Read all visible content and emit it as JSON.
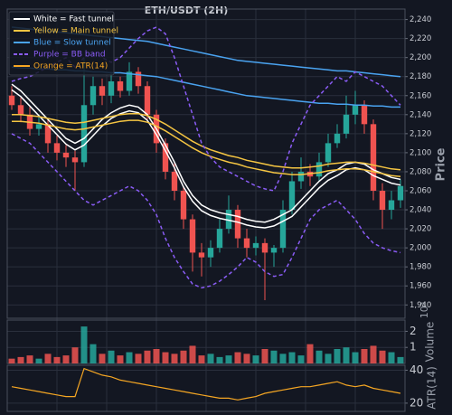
{
  "chart_data": [
    {
      "type": "candlestick",
      "title": "ETH/USDT (2H)",
      "y_label": "Price",
      "categories": [
        null,
        null,
        null,
        null,
        null,
        null,
        null,
        null,
        null,
        null,
        null,
        null,
        null,
        null,
        null,
        null,
        null,
        null,
        null,
        null,
        null,
        null,
        null,
        null,
        null,
        null,
        null,
        null,
        null,
        null,
        null,
        null,
        null,
        null,
        null,
        null,
        null,
        null,
        null,
        null,
        null,
        null,
        null,
        null
      ],
      "up_color": "#26a69a",
      "down_color": "#ef5350",
      "open": [
        2160,
        2150,
        2140,
        2125,
        2130,
        2110,
        2100,
        2095,
        2090,
        2150,
        2170,
        2160,
        2175,
        2165,
        2185,
        2170,
        2140,
        2110,
        2080,
        2060,
        2030,
        1995,
        1990,
        2000,
        2020,
        2040,
        2010,
        2000,
        2005,
        1995,
        2000,
        2040,
        2070,
        2080,
        2075,
        2090,
        2110,
        2120,
        2140,
        2150,
        2130,
        2060,
        2040,
        2050
      ],
      "high": [
        2170,
        2158,
        2148,
        2140,
        2135,
        2118,
        2108,
        2102,
        2200,
        2180,
        2178,
        2185,
        2180,
        2195,
        2190,
        2175,
        2145,
        2115,
        2090,
        2065,
        2035,
        2005,
        2008,
        2030,
        2055,
        2045,
        2020,
        2012,
        2010,
        2003,
        2050,
        2080,
        2095,
        2088,
        2100,
        2120,
        2130,
        2160,
        2165,
        2155,
        2135,
        2068,
        2060,
        2072
      ],
      "low": [
        2145,
        2132,
        2118,
        2118,
        2100,
        2092,
        2085,
        2060,
        2085,
        2140,
        2150,
        2152,
        2158,
        2160,
        2162,
        2135,
        2100,
        2072,
        2050,
        2020,
        1975,
        1970,
        1980,
        1995,
        2015,
        2000,
        1990,
        1992,
        1945,
        1980,
        1995,
        2035,
        2062,
        2065,
        2070,
        2085,
        2105,
        2115,
        2130,
        2120,
        2050,
        2020,
        2030,
        2042
      ],
      "close": [
        2150,
        2140,
        2125,
        2130,
        2110,
        2100,
        2095,
        2090,
        2150,
        2170,
        2160,
        2175,
        2165,
        2185,
        2170,
        2140,
        2110,
        2080,
        2060,
        2030,
        1995,
        1990,
        2000,
        2020,
        2040,
        2010,
        2000,
        2005,
        1995,
        2000,
        2040,
        2070,
        2080,
        2075,
        2090,
        2110,
        2120,
        2140,
        2150,
        2130,
        2060,
        2040,
        2050,
        2065
      ],
      "series": [
        {
          "name": "White = Fast tunnel",
          "color": "#ffffff",
          "dashed": false,
          "upper": [
            2172,
            2165,
            2155,
            2145,
            2135,
            2125,
            2115,
            2110,
            2115,
            2125,
            2135,
            2142,
            2147,
            2150,
            2148,
            2140,
            2125,
            2108,
            2090,
            2070,
            2055,
            2045,
            2040,
            2037,
            2035,
            2033,
            2030,
            2028,
            2027,
            2030,
            2035,
            2040,
            2050,
            2060,
            2070,
            2078,
            2082,
            2088,
            2090,
            2088,
            2082,
            2078,
            2074,
            2072
          ],
          "lower": [
            2166,
            2159,
            2149,
            2139,
            2129,
            2119,
            2109,
            2103,
            2108,
            2118,
            2128,
            2136,
            2141,
            2144,
            2142,
            2134,
            2119,
            2102,
            2084,
            2064,
            2049,
            2039,
            2034,
            2031,
            2029,
            2027,
            2024,
            2022,
            2021,
            2023,
            2028,
            2033,
            2043,
            2053,
            2063,
            2071,
            2076,
            2082,
            2084,
            2082,
            2076,
            2072,
            2068,
            2066
          ]
        },
        {
          "name": "Yellow = Main tunnel",
          "color": "#f5c542",
          "dashed": false,
          "upper": [
            2140,
            2140,
            2139,
            2138,
            2136,
            2134,
            2132,
            2131,
            2132,
            2134,
            2136,
            2138,
            2140,
            2141,
            2141,
            2139,
            2135,
            2130,
            2124,
            2118,
            2112,
            2107,
            2103,
            2100,
            2097,
            2095,
            2092,
            2090,
            2088,
            2086,
            2085,
            2084,
            2084,
            2085,
            2086,
            2088,
            2089,
            2090,
            2090,
            2089,
            2087,
            2085,
            2083,
            2082
          ],
          "lower": [
            2133,
            2133,
            2132,
            2131,
            2129,
            2127,
            2125,
            2124,
            2125,
            2127,
            2129,
            2131,
            2133,
            2134,
            2134,
            2132,
            2128,
            2123,
            2117,
            2111,
            2105,
            2100,
            2096,
            2093,
            2090,
            2088,
            2085,
            2083,
            2081,
            2079,
            2078,
            2077,
            2077,
            2078,
            2079,
            2081,
            2082,
            2083,
            2083,
            2082,
            2080,
            2078,
            2076,
            2075
          ]
        },
        {
          "name": "Blue = Slow tunnel",
          "color": "#4aa3f0",
          "dashed": false,
          "upper": [
            2232,
            2231,
            2230,
            2229,
            2228,
            2227,
            2226,
            2225,
            2224,
            2223,
            2222,
            2221,
            2220,
            2219,
            2218,
            2217,
            2215,
            2213,
            2211,
            2209,
            2207,
            2205,
            2203,
            2201,
            2199,
            2197,
            2196,
            2195,
            2194,
            2193,
            2192,
            2191,
            2190,
            2189,
            2188,
            2187,
            2186,
            2186,
            2185,
            2184,
            2183,
            2182,
            2181,
            2180
          ],
          "lower": [
            2190,
            2189,
            2189,
            2188,
            2188,
            2187,
            2187,
            2186,
            2186,
            2185,
            2185,
            2184,
            2184,
            2183,
            2182,
            2181,
            2180,
            2178,
            2176,
            2174,
            2172,
            2170,
            2168,
            2166,
            2164,
            2162,
            2160,
            2159,
            2158,
            2157,
            2156,
            2155,
            2154,
            2153,
            2152,
            2152,
            2151,
            2151,
            2150,
            2150,
            2149,
            2149,
            2148,
            2148
          ]
        },
        {
          "name": "Purple = BB band",
          "color": "#8a5cf5",
          "dashed": true,
          "upper": [
            2175,
            2178,
            2180,
            2185,
            2190,
            2195,
            2200,
            2190,
            2200,
            2205,
            2200,
            2195,
            2200,
            2210,
            2220,
            2228,
            2232,
            2225,
            2200,
            2170,
            2140,
            2110,
            2095,
            2085,
            2080,
            2075,
            2070,
            2065,
            2062,
            2060,
            2080,
            2110,
            2130,
            2150,
            2160,
            2170,
            2180,
            2175,
            2185,
            2180,
            2175,
            2170,
            2160,
            2150
          ],
          "lower": [
            2120,
            2115,
            2110,
            2100,
            2090,
            2080,
            2070,
            2060,
            2050,
            2045,
            2050,
            2055,
            2060,
            2065,
            2060,
            2050,
            2035,
            2010,
            1990,
            1975,
            1962,
            1958,
            1960,
            1965,
            1972,
            1980,
            1990,
            1985,
            1975,
            1970,
            1972,
            1990,
            2010,
            2030,
            2040,
            2045,
            2050,
            2040,
            2030,
            2015,
            2005,
            2000,
            1997,
            1995
          ]
        }
      ],
      "ylim": [
        1926,
        2251
      ],
      "yticks": [
        {
          "value": 1940,
          "label": "1,940"
        },
        {
          "value": 1960,
          "label": "1,960"
        },
        {
          "value": 1980,
          "label": "1,980"
        },
        {
          "value": 2000,
          "label": "2,000"
        },
        {
          "value": 2020,
          "label": "2,020"
        },
        {
          "value": 2040,
          "label": "2,040"
        },
        {
          "value": 2060,
          "label": "2,060"
        },
        {
          "value": 2080,
          "label": "2,080"
        },
        {
          "value": 2100,
          "label": "2,100"
        },
        {
          "value": 2120,
          "label": "2,120"
        },
        {
          "value": 2140,
          "label": "2,140"
        },
        {
          "value": 2160,
          "label": "2,160"
        },
        {
          "value": 2180,
          "label": "2,180"
        },
        {
          "value": 2200,
          "label": "2,200"
        },
        {
          "value": 2220,
          "label": "2,220"
        },
        {
          "value": 2240,
          "label": "2,240"
        }
      ],
      "grid": true
    },
    {
      "type": "bar",
      "y_label": "Volume",
      "offset_label": "10³",
      "values": [
        0.3,
        0.4,
        0.5,
        0.3,
        0.6,
        0.4,
        0.5,
        1.0,
        2.3,
        1.2,
        0.6,
        0.8,
        0.5,
        0.7,
        0.6,
        0.8,
        0.9,
        0.7,
        0.6,
        0.8,
        1.1,
        0.5,
        0.6,
        0.4,
        0.5,
        0.7,
        0.6,
        0.5,
        0.9,
        0.8,
        0.6,
        0.7,
        0.5,
        1.2,
        0.8,
        0.6,
        0.9,
        1.0,
        0.7,
        0.9,
        1.1,
        0.8,
        0.7,
        0.4
      ],
      "ylim": [
        0,
        2.7
      ],
      "yticks": [
        1,
        2
      ],
      "grid": true
    },
    {
      "type": "line",
      "y_label": "ATR(14)",
      "series": [
        {
          "name": "Orange = ATR(14)",
          "color": "#f5a623",
          "values": [
            30,
            29,
            28,
            27,
            26,
            25,
            24,
            24,
            41,
            39,
            37,
            36,
            34,
            33,
            32,
            31,
            30,
            29,
            28,
            27,
            26,
            25,
            24,
            23,
            23,
            22,
            23,
            24,
            26,
            27,
            28,
            29,
            30,
            30,
            31,
            32,
            33,
            31,
            30,
            31,
            29,
            28,
            27,
            26
          ]
        }
      ],
      "ylim": [
        15,
        43
      ],
      "yticks": [
        20,
        40
      ],
      "grid": true
    }
  ]
}
